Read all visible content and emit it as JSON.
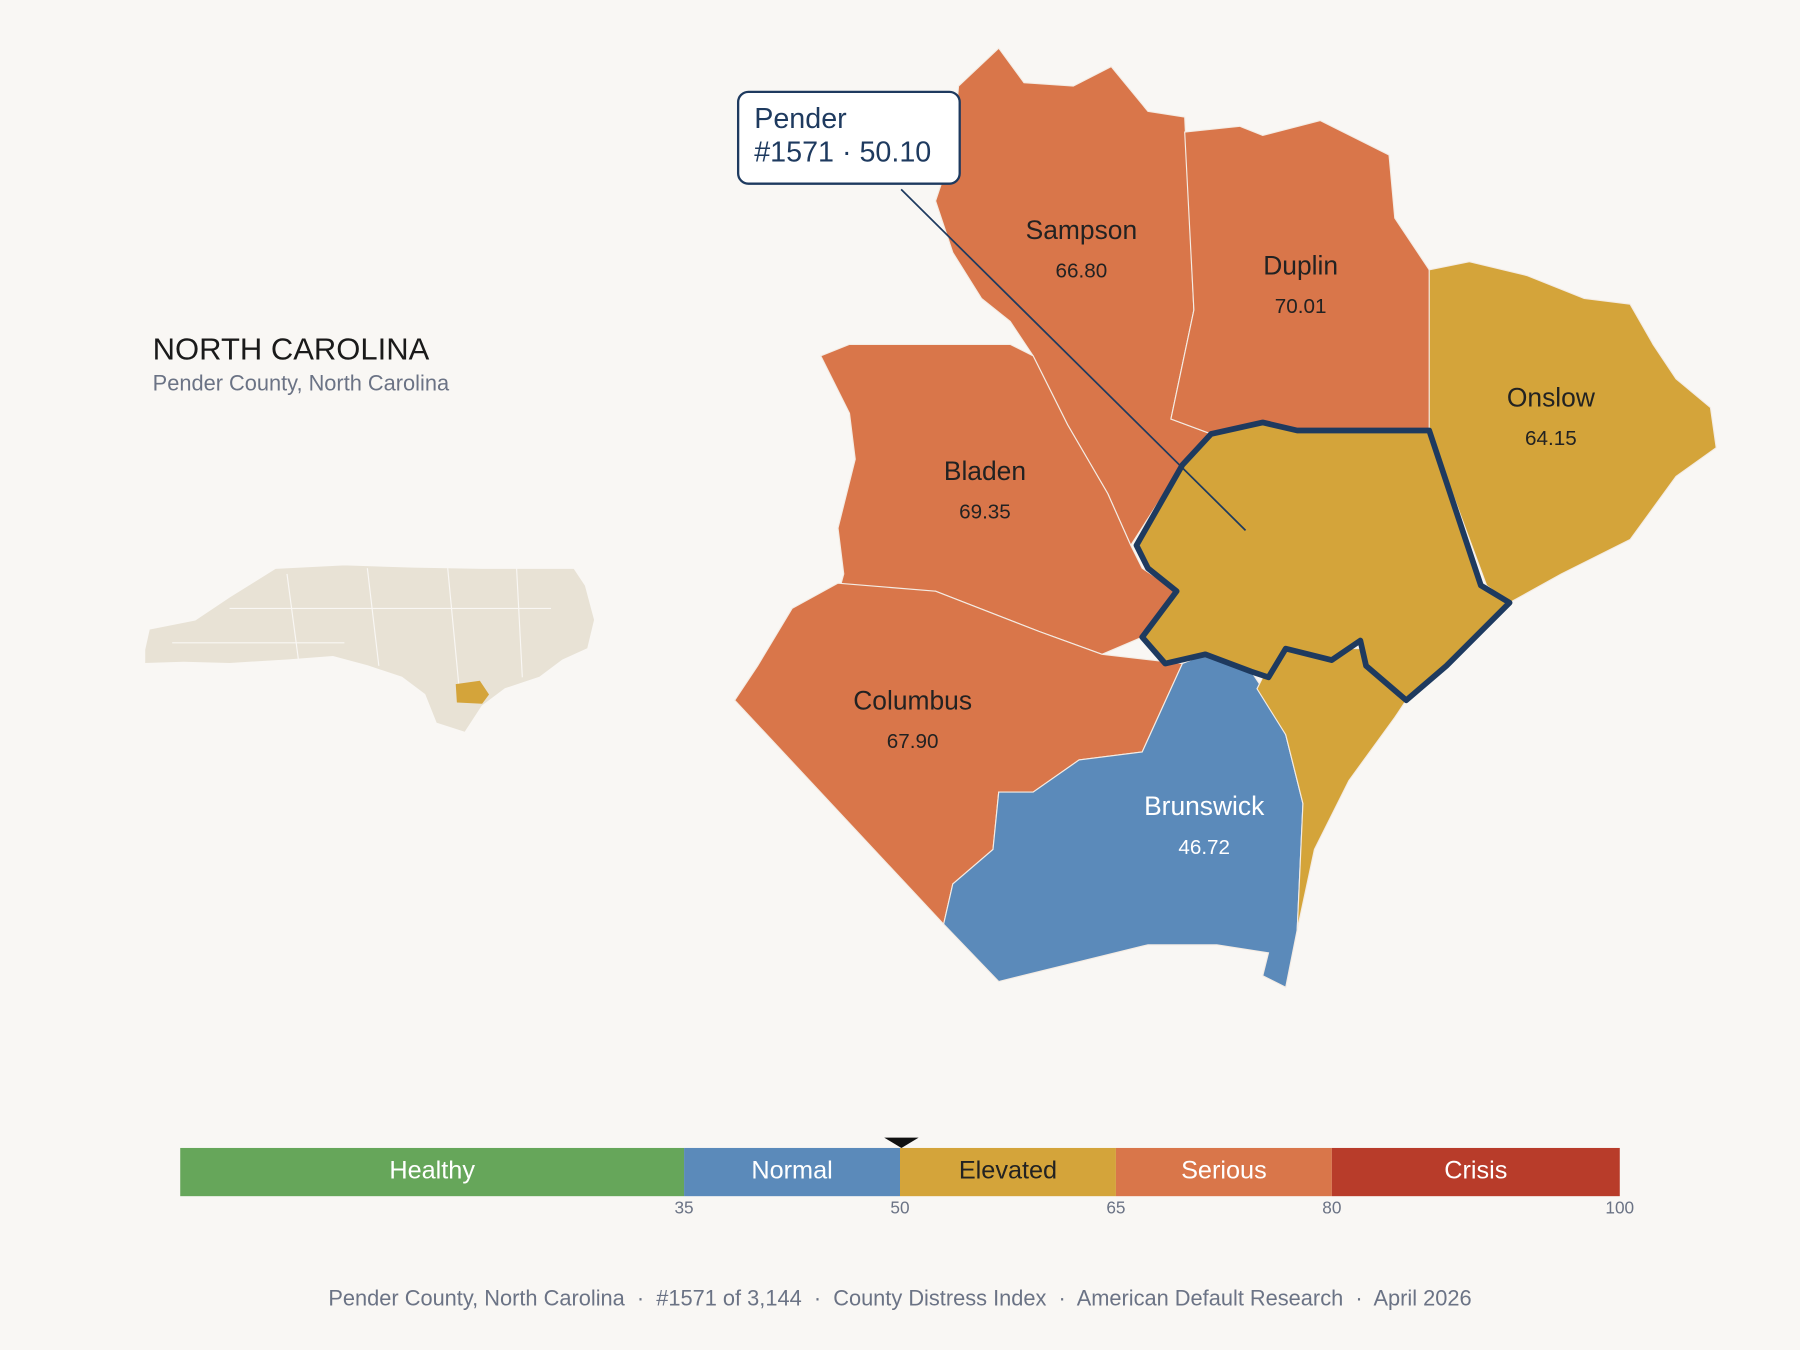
{
  "header": {
    "title": "NORTH CAROLINA",
    "subtitle": "Pender County, North Carolina"
  },
  "tooltip": {
    "name": "Pender",
    "detail": "#1571 · 50.10"
  },
  "counties": [
    {
      "name": "Sampson",
      "value": "66.80",
      "color": "#d9764a"
    },
    {
      "name": "Duplin",
      "value": "70.01",
      "color": "#d9764a"
    },
    {
      "name": "Onslow",
      "value": "64.15",
      "color": "#d4a43a"
    },
    {
      "name": "Bladen",
      "value": "69.35",
      "color": "#d9764a"
    },
    {
      "name": "Columbus",
      "value": "67.90",
      "color": "#d9764a"
    },
    {
      "name": "Brunswick",
      "value": "46.72",
      "color": "#5b8aba"
    }
  ],
  "legend": {
    "bands": [
      {
        "label": "Healthy",
        "color": "#66a65a"
      },
      {
        "label": "Normal",
        "color": "#5b8aba"
      },
      {
        "label": "Elevated",
        "color": "#d4a43a"
      },
      {
        "label": "Serious",
        "color": "#d9764a"
      },
      {
        "label": "Crisis",
        "color": "#b83c2a"
      }
    ],
    "ticks": [
      35,
      50,
      65,
      80,
      100
    ],
    "marker_value": 50.1
  },
  "footer": "Pender County, North Carolina  ·  #1571 of 3,144  ·  County Distress Index  ·  American Default Research  ·  April 2026"
}
